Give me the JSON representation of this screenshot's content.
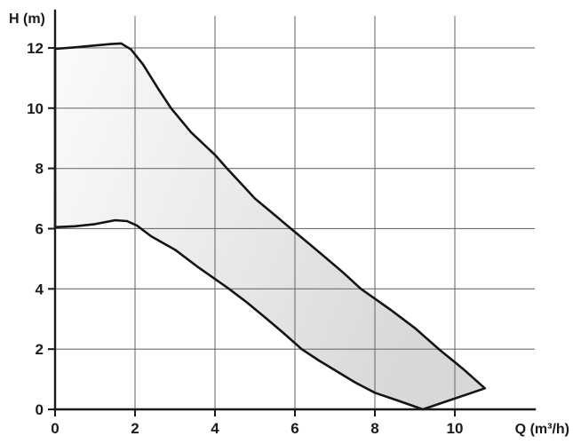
{
  "chart_data": {
    "type": "area",
    "title": "",
    "xlabel": "Q (m³/h)",
    "ylabel": "H (m)",
    "xlim": [
      0,
      12
    ],
    "ylim": [
      0,
      12.4
    ],
    "xticks": [
      "0",
      "2",
      "4",
      "6",
      "8",
      "10"
    ],
    "xtick_values": [
      0,
      2,
      4,
      6,
      8,
      10
    ],
    "yticks": [
      "0",
      "2",
      "4",
      "6",
      "8",
      "10",
      "12"
    ],
    "ytick_values": [
      0,
      2,
      4,
      6,
      8,
      10,
      12
    ],
    "grid": true,
    "legend": "none",
    "description": "Pump performance envelope: shaded operating region between maximum and minimum head curves",
    "series": [
      {
        "name": "upper-limit-curve",
        "points": [
          [
            0,
            11.97
          ],
          [
            0.5,
            12.02
          ],
          [
            1.0,
            12.08
          ],
          [
            1.4,
            12.13
          ],
          [
            1.65,
            12.15
          ],
          [
            1.9,
            11.95
          ],
          [
            2.2,
            11.45
          ],
          [
            2.6,
            10.6
          ],
          [
            2.9,
            10.0
          ],
          [
            3.4,
            9.2
          ],
          [
            4.0,
            8.45
          ],
          [
            4.3,
            8.0
          ],
          [
            4.65,
            7.5
          ],
          [
            5.0,
            7.0
          ],
          [
            5.45,
            6.5
          ],
          [
            5.9,
            6.0
          ],
          [
            6.35,
            5.5
          ],
          [
            6.8,
            5.0
          ],
          [
            7.2,
            4.55
          ],
          [
            7.65,
            4.0
          ],
          [
            8.4,
            3.3
          ],
          [
            9.0,
            2.7
          ],
          [
            9.6,
            2.0
          ],
          [
            10.2,
            1.35
          ],
          [
            10.75,
            0.7
          ]
        ]
      },
      {
        "name": "lower-limit-curve",
        "points": [
          [
            0,
            6.05
          ],
          [
            0.5,
            6.08
          ],
          [
            1.0,
            6.15
          ],
          [
            1.5,
            6.28
          ],
          [
            1.8,
            6.25
          ],
          [
            2.05,
            6.1
          ],
          [
            2.4,
            5.75
          ],
          [
            3.0,
            5.3
          ],
          [
            3.6,
            4.7
          ],
          [
            4.35,
            4.0
          ],
          [
            4.8,
            3.55
          ],
          [
            5.3,
            3.0
          ],
          [
            5.7,
            2.55
          ],
          [
            6.17,
            2.0
          ],
          [
            6.6,
            1.62
          ],
          [
            7.0,
            1.3
          ],
          [
            7.5,
            0.9
          ],
          [
            8.0,
            0.55
          ],
          [
            8.6,
            0.28
          ],
          [
            9.2,
            0.0
          ]
        ]
      }
    ],
    "colors": {
      "curve": "#141414",
      "axis": "#1a1a1a",
      "grid": "#6f6f6f",
      "fill_light": "#fbfbfb",
      "fill_mid": "#ececec",
      "fill_dark": "#d8d8d8",
      "background": "#ffffff",
      "text": "#1a1a1a"
    }
  }
}
